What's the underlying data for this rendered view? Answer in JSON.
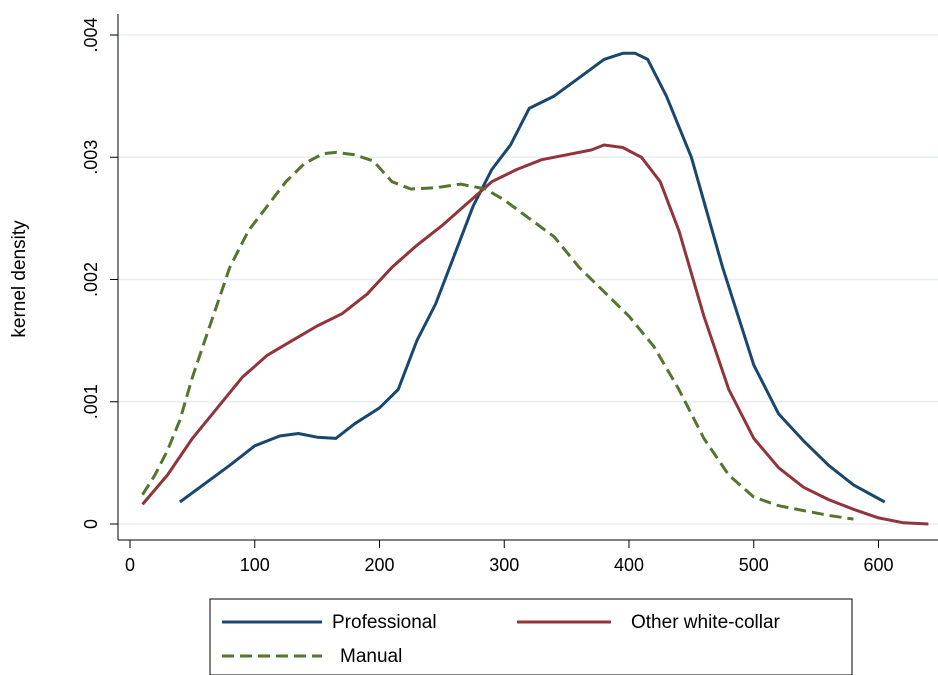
{
  "chart_data": {
    "type": "line",
    "title": "",
    "xlabel": "",
    "ylabel": "kernel density",
    "xlim": [
      0,
      640
    ],
    "ylim": [
      0,
      0.004
    ],
    "x_ticks": [
      0,
      100,
      200,
      300,
      400,
      500,
      600
    ],
    "x_tick_labels": [
      "0",
      "100",
      "200",
      "300",
      "400",
      "500",
      "600"
    ],
    "y_ticks": [
      0,
      0.001,
      0.002,
      0.003,
      0.004
    ],
    "y_tick_labels": [
      "0",
      ".001",
      ".002",
      ".003",
      ".004"
    ],
    "grid": true,
    "legend_position": "bottom",
    "series": [
      {
        "name": "Professional",
        "color": "#1a476f",
        "dash": "solid",
        "points": [
          [
            40,
            0.00018
          ],
          [
            60,
            0.00033
          ],
          [
            80,
            0.00048
          ],
          [
            100,
            0.00064
          ],
          [
            120,
            0.00072
          ],
          [
            135,
            0.00074
          ],
          [
            150,
            0.00071
          ],
          [
            165,
            0.0007
          ],
          [
            180,
            0.00082
          ],
          [
            200,
            0.00095
          ],
          [
            215,
            0.0011
          ],
          [
            230,
            0.0015
          ],
          [
            245,
            0.0018
          ],
          [
            260,
            0.0022
          ],
          [
            275,
            0.0026
          ],
          [
            290,
            0.0029
          ],
          [
            305,
            0.0031
          ],
          [
            320,
            0.0034
          ],
          [
            340,
            0.0035
          ],
          [
            360,
            0.00365
          ],
          [
            380,
            0.0038
          ],
          [
            395,
            0.00385
          ],
          [
            405,
            0.00385
          ],
          [
            415,
            0.0038
          ],
          [
            430,
            0.0035
          ],
          [
            450,
            0.003
          ],
          [
            475,
            0.0021
          ],
          [
            500,
            0.0013
          ],
          [
            520,
            0.0009
          ],
          [
            540,
            0.00068
          ],
          [
            560,
            0.00048
          ],
          [
            580,
            0.00032
          ],
          [
            605,
            0.00018
          ]
        ]
      },
      {
        "name": "Other white-collar",
        "color": "#90353b",
        "dash": "solid",
        "points": [
          [
            10,
            0.00016
          ],
          [
            30,
            0.0004
          ],
          [
            50,
            0.0007
          ],
          [
            70,
            0.00095
          ],
          [
            90,
            0.0012
          ],
          [
            110,
            0.00138
          ],
          [
            130,
            0.0015
          ],
          [
            150,
            0.00162
          ],
          [
            170,
            0.00172
          ],
          [
            190,
            0.00188
          ],
          [
            210,
            0.0021
          ],
          [
            230,
            0.00228
          ],
          [
            250,
            0.00244
          ],
          [
            270,
            0.00262
          ],
          [
            290,
            0.0028
          ],
          [
            310,
            0.0029
          ],
          [
            330,
            0.00298
          ],
          [
            350,
            0.00302
          ],
          [
            370,
            0.00306
          ],
          [
            380,
            0.0031
          ],
          [
            395,
            0.00308
          ],
          [
            410,
            0.003
          ],
          [
            425,
            0.0028
          ],
          [
            440,
            0.0024
          ],
          [
            460,
            0.0017
          ],
          [
            480,
            0.0011
          ],
          [
            500,
            0.0007
          ],
          [
            520,
            0.00046
          ],
          [
            540,
            0.0003
          ],
          [
            560,
            0.0002
          ],
          [
            580,
            0.00012
          ],
          [
            600,
            5e-05
          ],
          [
            620,
            1e-05
          ],
          [
            640,
            0.0
          ]
        ]
      },
      {
        "name": "Manual",
        "color": "#55752f",
        "dash": "dashed",
        "points": [
          [
            10,
            0.00024
          ],
          [
            20,
            0.0004
          ],
          [
            30,
            0.0006
          ],
          [
            40,
            0.00085
          ],
          [
            50,
            0.0012
          ],
          [
            60,
            0.0015
          ],
          [
            70,
            0.0018
          ],
          [
            80,
            0.0021
          ],
          [
            95,
            0.0024
          ],
          [
            110,
            0.0026
          ],
          [
            125,
            0.0028
          ],
          [
            140,
            0.00295
          ],
          [
            155,
            0.00303
          ],
          [
            165,
            0.00304
          ],
          [
            180,
            0.00302
          ],
          [
            195,
            0.00297
          ],
          [
            210,
            0.0028
          ],
          [
            225,
            0.00274
          ],
          [
            245,
            0.00275
          ],
          [
            265,
            0.00278
          ],
          [
            285,
            0.00274
          ],
          [
            300,
            0.00265
          ],
          [
            320,
            0.0025
          ],
          [
            340,
            0.00235
          ],
          [
            360,
            0.0021
          ],
          [
            380,
            0.0019
          ],
          [
            400,
            0.0017
          ],
          [
            420,
            0.00145
          ],
          [
            440,
            0.0011
          ],
          [
            460,
            0.0007
          ],
          [
            480,
            0.0004
          ],
          [
            500,
            0.00022
          ],
          [
            520,
            0.00015
          ],
          [
            540,
            0.00011
          ],
          [
            560,
            7e-05
          ],
          [
            580,
            4e-05
          ]
        ]
      }
    ]
  }
}
